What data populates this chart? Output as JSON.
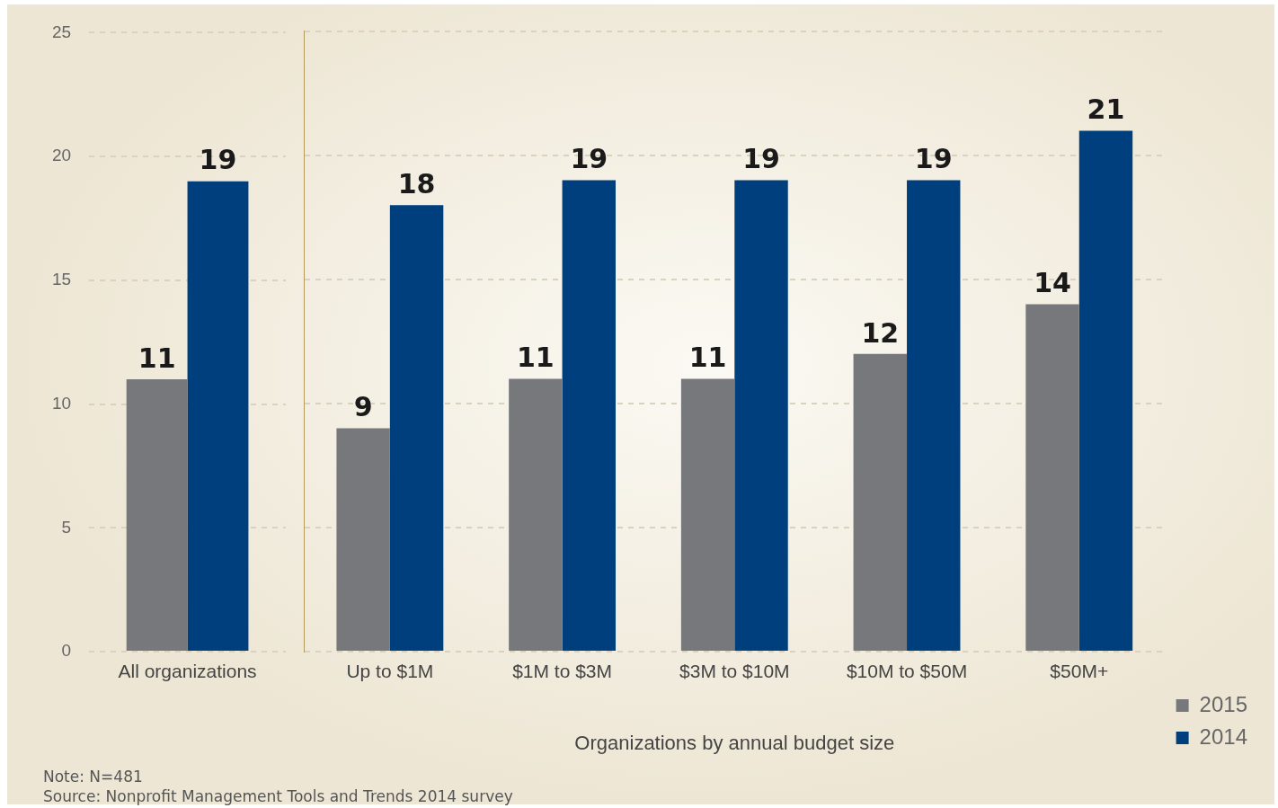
{
  "chart_data": [
    {
      "type": "bar",
      "categories": [
        "All organizations"
      ],
      "series": [
        {
          "color": "#77787b",
          "values": [
            11
          ]
        },
        {
          "color": "#003f7d",
          "values": [
            19
          ]
        }
      ],
      "ylim": [
        0,
        25
      ],
      "yticks": [
        0,
        5,
        10,
        15,
        20,
        25
      ],
      "grid": "y",
      "data_labels": true,
      "annotations": [
        "Note: N=481",
        "Source: Nonprofit Management Tools and Trends 2014 survey"
      ]
    },
    {
      "type": "bar",
      "xlabel": "Organizations by annual budget size",
      "categories": [
        "Up to $1M",
        "$1M to $3M",
        "$3M to $10M",
        "$10M to $50M",
        "$50M+"
      ],
      "series": [
        {
          "name": "2015",
          "color": "#77787b",
          "values": [
            9,
            11,
            11,
            12,
            14
          ]
        },
        {
          "name": "2014",
          "color": "#003f7d",
          "values": [
            18,
            19,
            19,
            19,
            21
          ]
        }
      ],
      "ylim": [
        0,
        25
      ],
      "yticks": [
        0,
        5,
        10,
        15,
        20,
        25
      ],
      "grid": "y",
      "legend": "bottom right",
      "data_labels": true,
      "tick_labels": "x"
    }
  ]
}
